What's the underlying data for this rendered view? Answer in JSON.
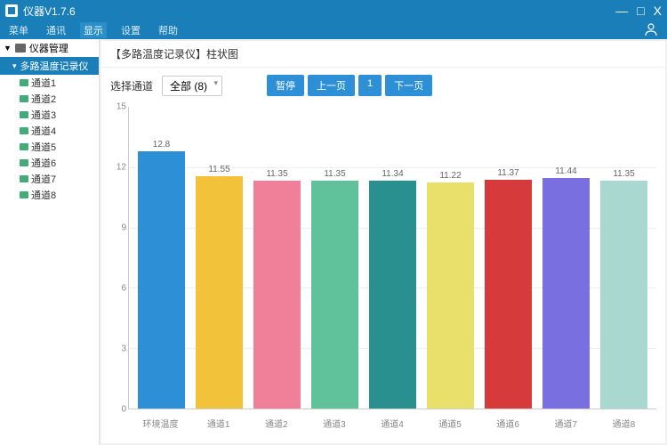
{
  "window": {
    "title": "仪器V1.7.6",
    "min": "—",
    "max": "□",
    "close": "X"
  },
  "menubar": {
    "items": [
      "菜单",
      "通讯",
      "显示",
      "设置",
      "帮助"
    ],
    "active_index": 2
  },
  "sidebar": {
    "root_label": "仪器管理",
    "device_label": "多路温度记录仪",
    "channels": [
      "通道1",
      "通道2",
      "通道3",
      "通道4",
      "通道5",
      "通道6",
      "通道7",
      "通道8"
    ]
  },
  "panel": {
    "title": "【多路温度记录仪】柱状图",
    "select_label": "选择通道",
    "select_value": "全部 (8)",
    "buttons": [
      "暂停",
      "上一页",
      "1",
      "下一页"
    ]
  },
  "chart": {
    "type": "bar",
    "ylim": [
      0,
      15
    ],
    "yticks": [
      0,
      3,
      6,
      9,
      12,
      15
    ],
    "background_color": "#ffffff",
    "grid_color": "#eeeeee",
    "axis_color": "#cccccc",
    "label_fontsize": 10,
    "label_color": "#888888",
    "value_fontsize": 10,
    "value_color": "#666666",
    "bar_width": 0.82,
    "categories": [
      "环境温度",
      "通道1",
      "通道2",
      "通道3",
      "通道4",
      "通道5",
      "通道6",
      "通道7",
      "通道8"
    ],
    "values": [
      12.8,
      11.55,
      11.35,
      11.35,
      11.34,
      11.22,
      11.37,
      11.44,
      11.35
    ],
    "bar_colors": [
      "#2d8fd6",
      "#f2c23a",
      "#f07f9a",
      "#5fc29a",
      "#2a8f8f",
      "#e8e06a",
      "#d63a3a",
      "#7a6fe0",
      "#a8d8d0"
    ]
  }
}
